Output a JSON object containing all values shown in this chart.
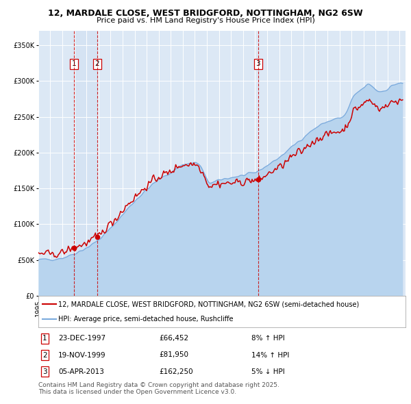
{
  "title_line1": "12, MARDALE CLOSE, WEST BRIDGFORD, NOTTINGHAM, NG2 6SW",
  "title_line2": "Price paid vs. HM Land Registry's House Price Index (HPI)",
  "ylim": [
    0,
    370000
  ],
  "yticks": [
    0,
    50000,
    100000,
    150000,
    200000,
    250000,
    300000,
    350000
  ],
  "ytick_labels": [
    "£0",
    "£50K",
    "£100K",
    "£150K",
    "£200K",
    "£250K",
    "£300K",
    "£350K"
  ],
  "background_color": "#ffffff",
  "plot_bg_color": "#dce8f5",
  "grid_color": "#ffffff",
  "property_color": "#cc0000",
  "hpi_color": "#7aaadd",
  "hpi_fill_color": "#b8d4ee",
  "sale_dates": [
    "1997-12-23",
    "1999-11-19",
    "2013-04-05"
  ],
  "sale_prices": [
    66452,
    81950,
    162250
  ],
  "sale_labels": [
    "1",
    "2",
    "3"
  ],
  "vline_color": "#cc0000",
  "vspan_color": "#c8dcf0",
  "legend_property": "12, MARDALE CLOSE, WEST BRIDGFORD, NOTTINGHAM, NG2 6SW (semi-detached house)",
  "legend_hpi": "HPI: Average price, semi-detached house, Rushcliffe",
  "table_entries": [
    {
      "label": "1",
      "date": "23-DEC-1997",
      "price": "£66,452",
      "change": "8% ↑ HPI"
    },
    {
      "label": "2",
      "date": "19-NOV-1999",
      "price": "£81,950",
      "change": "14% ↑ HPI"
    },
    {
      "label": "3",
      "date": "05-APR-2013",
      "price": "£162,250",
      "change": "5% ↓ HPI"
    }
  ],
  "footer": "Contains HM Land Registry data © Crown copyright and database right 2025.\nThis data is licensed under the Open Government Licence v3.0.",
  "title_fontsize": 9,
  "subtitle_fontsize": 8,
  "tick_fontsize": 7,
  "legend_fontsize": 7,
  "table_fontsize": 7.5,
  "footer_fontsize": 6.5
}
